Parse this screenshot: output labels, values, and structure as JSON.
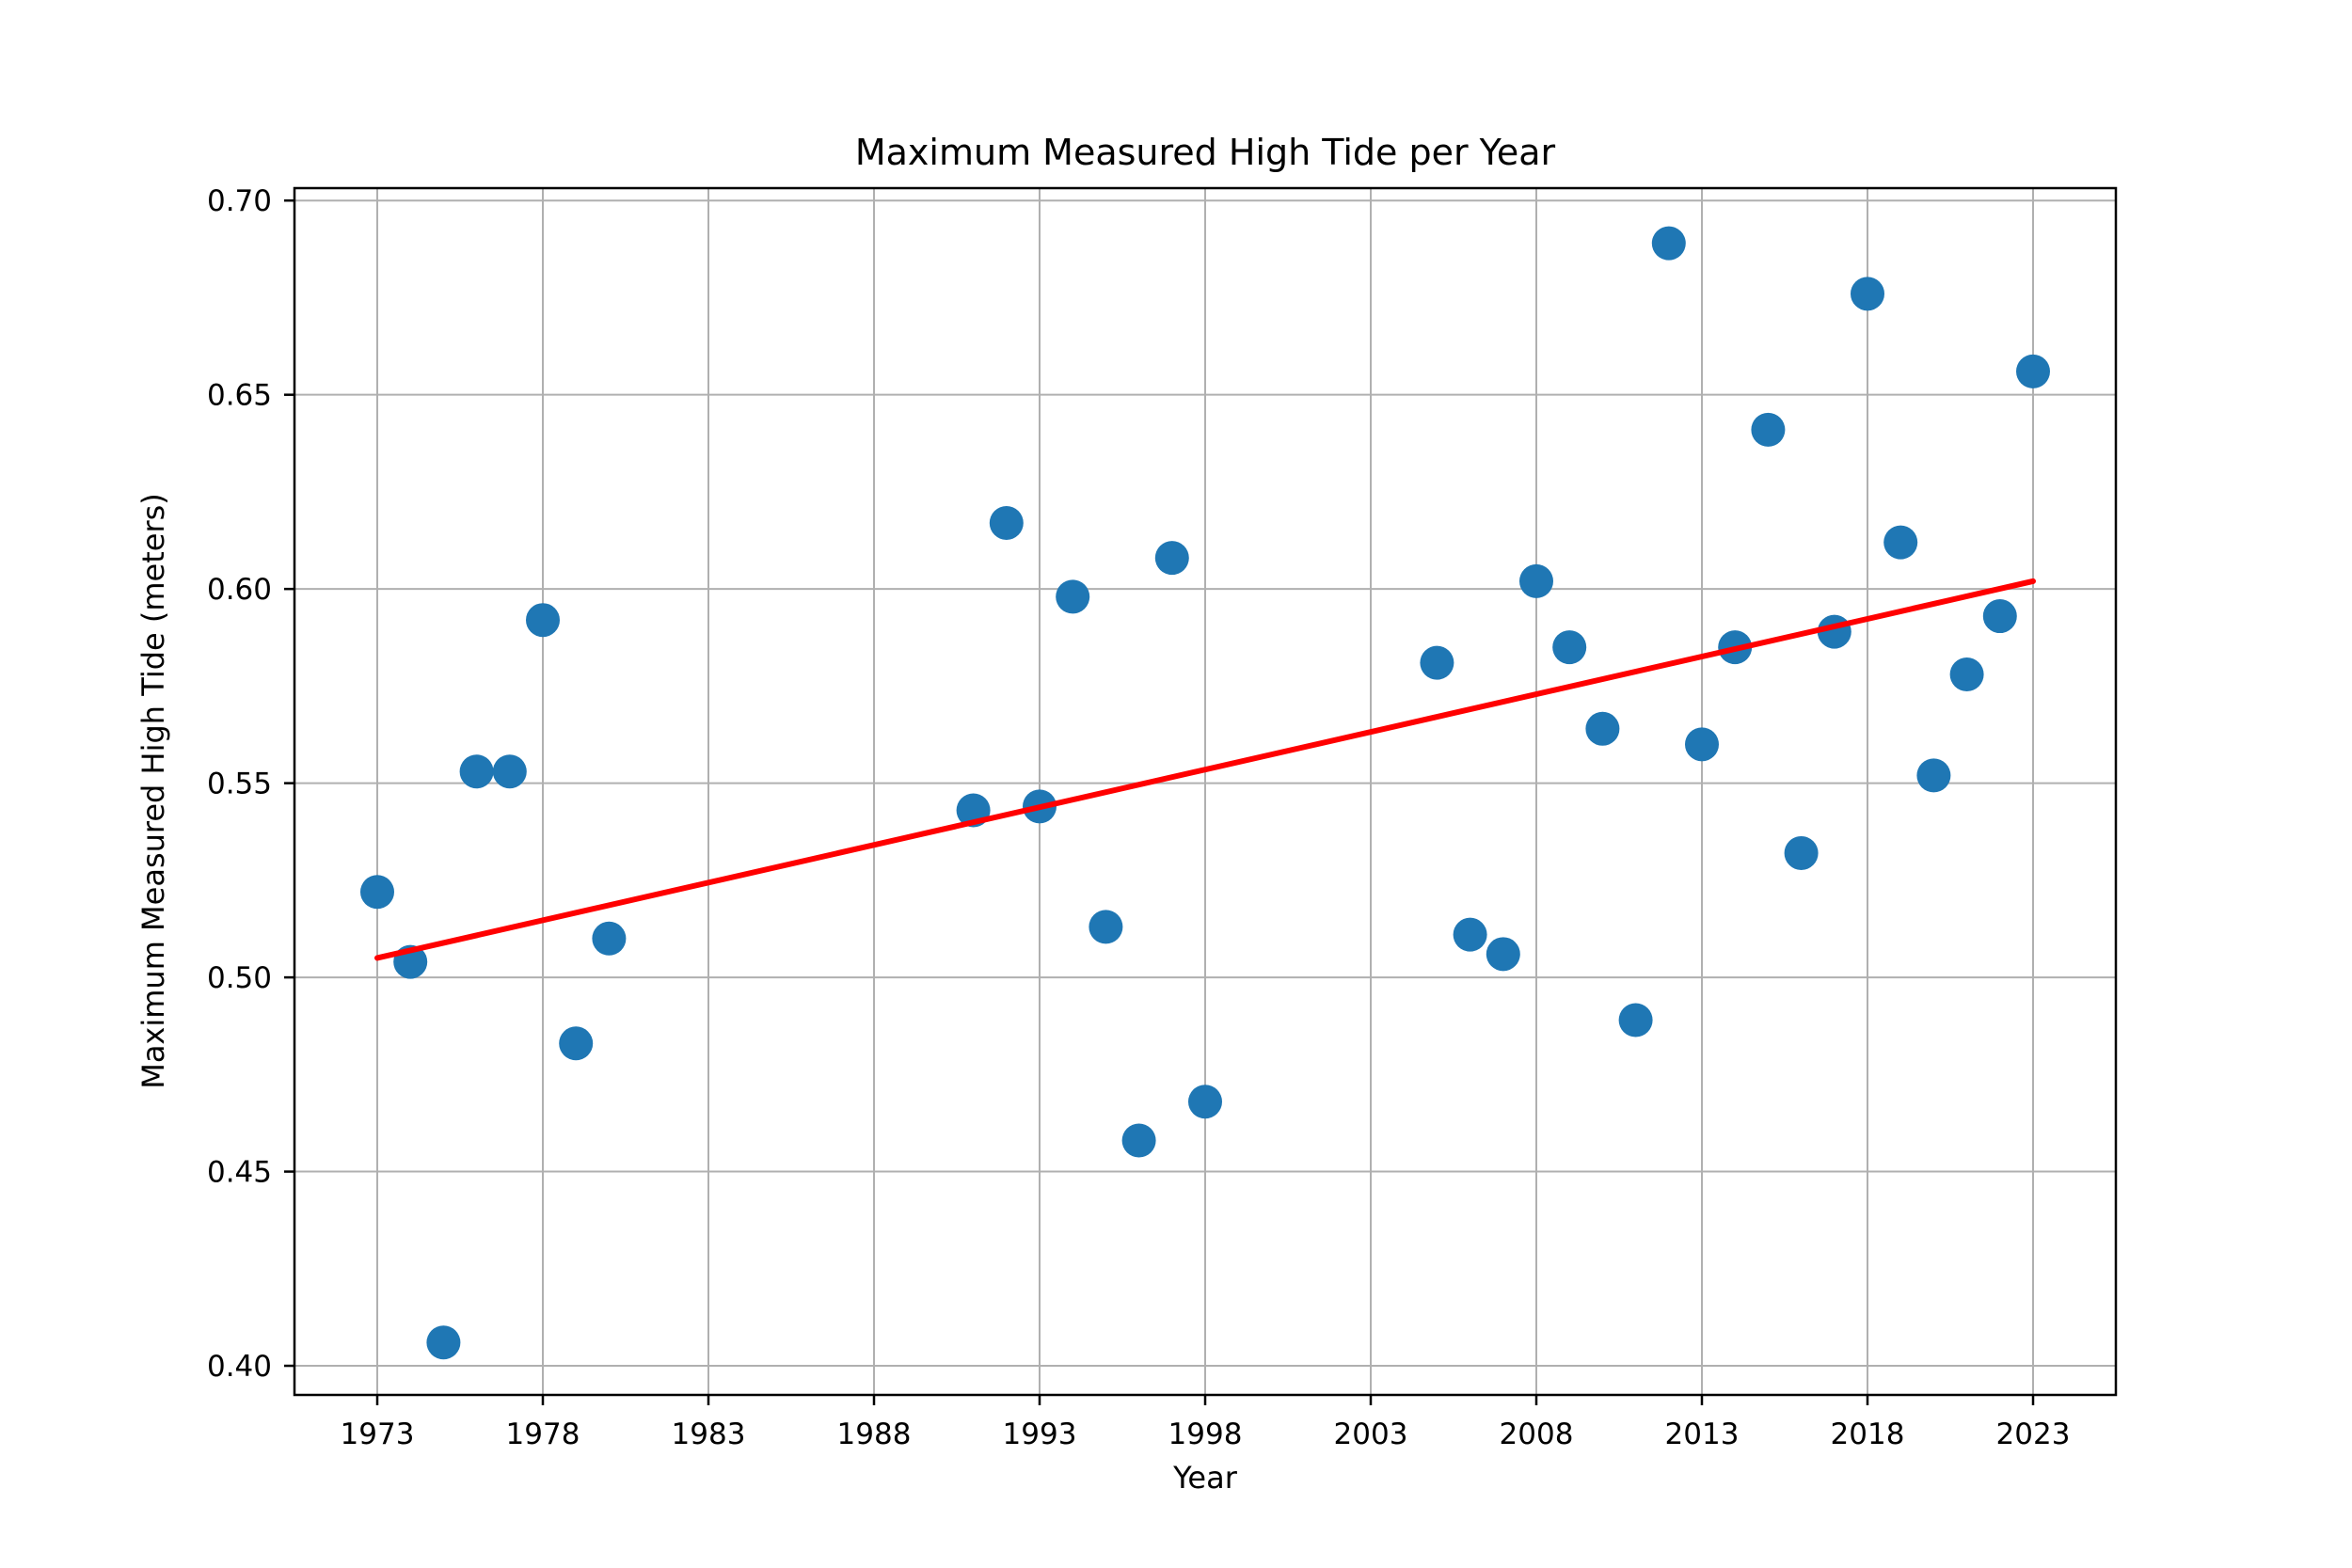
{
  "chart_data": {
    "type": "scatter",
    "title": "Maximum Measured High Tide per Year",
    "xlabel": "Year",
    "ylabel": "Maximum Measured High Tide (meters)",
    "grid": true,
    "legend": false,
    "xlim": [
      1970.5,
      2025.5
    ],
    "ylim": [
      0.3925,
      0.7032
    ],
    "x_ticks": {
      "values": [
        1973,
        1978,
        1983,
        1988,
        1993,
        1998,
        2003,
        2008,
        2013,
        2018,
        2023
      ],
      "labels": [
        "1973",
        "1978",
        "1983",
        "1988",
        "1993",
        "1998",
        "2003",
        "2008",
        "2013",
        "2018",
        "2023"
      ]
    },
    "y_ticks": {
      "values": [
        0.4,
        0.45,
        0.5,
        0.55,
        0.6,
        0.65,
        0.7
      ],
      "labels": [
        "0.40",
        "0.45",
        "0.50",
        "0.55",
        "0.60",
        "0.65",
        "0.70"
      ]
    },
    "series": [
      {
        "name": "max-high-tide-points",
        "marker": "circle",
        "color": "#1f77b4",
        "x": [
          1973,
          1974,
          1975,
          1976,
          1977,
          1978,
          1979,
          1980,
          1991,
          1992,
          1993,
          1994,
          1995,
          1996,
          1997,
          1998,
          2005,
          2006,
          2007,
          2008,
          2009,
          2010,
          2011,
          2012,
          2013,
          2014,
          2015,
          2016,
          2017,
          2018,
          2019,
          2020,
          2021,
          2022,
          2023
        ],
        "y": [
          0.522,
          0.504,
          0.406,
          0.553,
          0.553,
          0.592,
          0.483,
          0.51,
          0.543,
          0.617,
          0.544,
          0.598,
          0.513,
          0.458,
          0.608,
          0.468,
          0.581,
          0.511,
          0.506,
          0.602,
          0.585,
          0.564,
          0.489,
          0.689,
          0.56,
          0.585,
          0.641,
          0.532,
          0.589,
          0.676,
          0.612,
          0.552,
          0.578,
          0.593,
          0.656
        ]
      }
    ],
    "trend_line": {
      "name": "linear-trend",
      "color": "#ff0000",
      "x": [
        1973,
        2023
      ],
      "y": [
        0.505,
        0.602
      ]
    },
    "colors": {
      "marker": "#1f77b4",
      "trend": "#ff0000",
      "grid": "#b0b0b0",
      "axis": "#000000",
      "background": "#ffffff"
    }
  }
}
